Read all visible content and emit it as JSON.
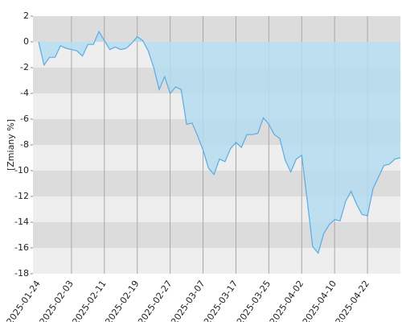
{
  "chart_data": {
    "type": "area",
    "y_label": "[Zmiany %]",
    "categories": [
      "2025-01-24",
      null,
      null,
      null,
      null,
      null,
      "2025-02-03",
      null,
      null,
      null,
      null,
      null,
      "2025-02-11",
      null,
      null,
      null,
      null,
      null,
      "2025-02-19",
      null,
      null,
      null,
      null,
      null,
      "2025-02-27",
      null,
      null,
      null,
      null,
      null,
      "2025-03-07",
      null,
      null,
      null,
      null,
      null,
      "2025-03-17",
      null,
      null,
      null,
      null,
      null,
      "2025-03-25",
      null,
      null,
      null,
      null,
      null,
      "2025-04-02",
      null,
      null,
      null,
      null,
      null,
      "2025-04-10",
      null,
      null,
      null,
      null,
      null,
      "2025-04-22",
      null,
      null,
      null,
      null,
      null,
      null
    ],
    "values": [
      0,
      -1.8,
      -1.2,
      -1.2,
      -0.3,
      -0.5,
      -0.6,
      -0.7,
      -1.1,
      -0.2,
      -0.2,
      0.8,
      0.1,
      -0.6,
      -0.4,
      -0.6,
      -0.5,
      -0.1,
      0.4,
      0.1,
      -0.7,
      -2,
      -3.7,
      -2.7,
      -4,
      -3.5,
      -3.7,
      -6.4,
      -6.3,
      -7.3,
      -8.4,
      -9.8,
      -10.3,
      -9.1,
      -9.3,
      -8.3,
      -7.8,
      -8.2,
      -7.2,
      -7.2,
      -7.1,
      -5.9,
      -6.4,
      -7.2,
      -7.5,
      -9.2,
      -10.1,
      -9.1,
      -8.8,
      -12.3,
      -15.9,
      -16.4,
      -14.9,
      -14.2,
      -13.8,
      -13.9,
      -12.4,
      -11.6,
      -12.6,
      -13.4,
      -13.5,
      -11.4,
      -10.5,
      -9.6,
      -9.5,
      -9.1,
      -9
    ],
    "color": "#5aabe6",
    "fill": "#b4dcee",
    "band_colors": [
      "#dcdcdc",
      "#eeeeee"
    ],
    "ylim": [
      -18,
      2
    ],
    "yticks": [
      -18,
      -16,
      -14,
      -12,
      -10,
      -8,
      -6,
      -4,
      -2,
      0,
      2
    ],
    "grid": true
  }
}
